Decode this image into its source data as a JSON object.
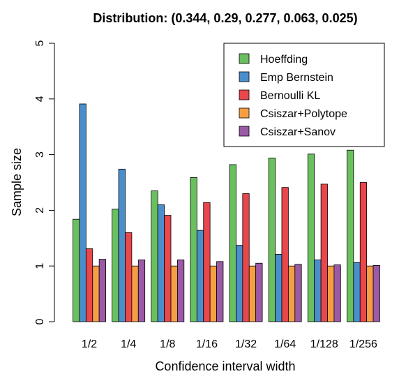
{
  "chart_data": {
    "type": "bar",
    "title": "Distribution: (0.344, 0.29, 0.277, 0.063, 0.025)",
    "xlabel": "Confidence interval width",
    "ylabel": "Sample size",
    "ylim": [
      0,
      5
    ],
    "yticks": [
      0,
      1,
      2,
      3,
      4,
      5
    ],
    "categories": [
      "1/2",
      "1/4",
      "1/8",
      "1/16",
      "1/32",
      "1/64",
      "1/128",
      "1/256"
    ],
    "legend_position": "top-right",
    "grid": false,
    "series": [
      {
        "name": "Hoeffding",
        "color": "#6abf5e",
        "values": [
          1.84,
          2.02,
          2.35,
          2.59,
          2.82,
          2.94,
          3.01,
          3.08
        ]
      },
      {
        "name": "Emp Bernstein",
        "color": "#4a8fcc",
        "values": [
          3.91,
          2.74,
          2.1,
          1.64,
          1.37,
          1.21,
          1.11,
          1.06
        ]
      },
      {
        "name": "Bernoulli KL",
        "color": "#e8474c",
        "values": [
          1.31,
          1.6,
          1.91,
          2.14,
          2.3,
          2.41,
          2.47,
          2.5
        ]
      },
      {
        "name": "Csiszar+Polytope",
        "color": "#f79e45",
        "values": [
          1.0,
          1.0,
          1.0,
          1.0,
          1.0,
          1.0,
          1.0,
          1.0
        ]
      },
      {
        "name": "Csiszar+Sanov",
        "color": "#9b5aa6",
        "values": [
          1.12,
          1.11,
          1.11,
          1.08,
          1.05,
          1.03,
          1.02,
          1.01
        ]
      }
    ]
  }
}
